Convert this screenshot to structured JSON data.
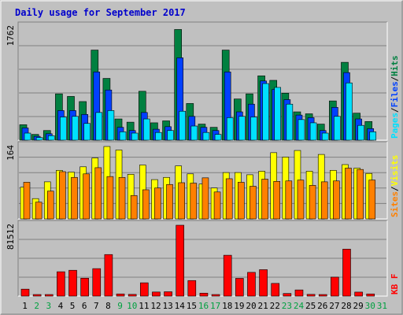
{
  "title": "Daily usage for September 2017",
  "colors": {
    "outer_bg": "#C0C0C0",
    "panel_bg": "#C0C0C0",
    "grid": "#808080",
    "title_text": "#0000CC",
    "hits": "#008040",
    "files": "#0040FF",
    "pages": "#00E0FF",
    "visits": "#FFFF00",
    "sites": "#FF8000",
    "kbytes": "#FF0000",
    "weekday_label": "#000000",
    "weekend_label": "#00A040"
  },
  "chart_data": [
    {
      "type": "bar",
      "title": "Daily usage for September 2017",
      "ylabel_max": "1762",
      "ylim": [
        0,
        1762
      ],
      "legend": [
        {
          "label": "Pages",
          "color": "#00E0FF"
        },
        {
          "label": "Files",
          "color": "#0040FF"
        },
        {
          "label": "Hits",
          "color": "#008040"
        }
      ],
      "categories": [
        "1",
        "2",
        "3",
        "4",
        "5",
        "6",
        "7",
        "8",
        "9",
        "10",
        "11",
        "12",
        "13",
        "14",
        "15",
        "16",
        "17",
        "18",
        "19",
        "20",
        "21",
        "22",
        "23",
        "24",
        "25",
        "26",
        "27",
        "28",
        "29",
        "30",
        "31"
      ],
      "series": [
        {
          "name": "Hits",
          "values": [
            240,
            90,
            150,
            720,
            680,
            600,
            1400,
            960,
            330,
            280,
            760,
            270,
            300,
            1720,
            570,
            250,
            200,
            1400,
            640,
            720,
            1000,
            930,
            730,
            440,
            410,
            250,
            610,
            1210,
            420,
            290,
            0
          ]
        },
        {
          "name": "Files",
          "values": [
            190,
            60,
            100,
            460,
            460,
            400,
            1060,
            780,
            200,
            150,
            430,
            170,
            210,
            1280,
            370,
            200,
            150,
            1060,
            440,
            560,
            920,
            790,
            630,
            390,
            350,
            150,
            510,
            1050,
            330,
            180,
            0
          ]
        },
        {
          "name": "Pages",
          "values": [
            110,
            40,
            70,
            360,
            370,
            260,
            430,
            460,
            130,
            110,
            330,
            120,
            150,
            450,
            220,
            120,
            90,
            350,
            370,
            360,
            880,
            820,
            560,
            320,
            270,
            110,
            370,
            890,
            230,
            130,
            0
          ]
        }
      ]
    },
    {
      "type": "bar",
      "ylabel_max": "164",
      "ylim": [
        0,
        164
      ],
      "legend": [
        {
          "label": "Sites",
          "color": "#FF8000"
        },
        {
          "label": "Visits",
          "color": "#FFFF00"
        }
      ],
      "categories": [
        "1",
        "2",
        "3",
        "4",
        "5",
        "6",
        "7",
        "8",
        "9",
        "10",
        "11",
        "12",
        "13",
        "14",
        "15",
        "16",
        "17",
        "18",
        "19",
        "20",
        "21",
        "22",
        "23",
        "24",
        "25",
        "26",
        "27",
        "28",
        "29",
        "30",
        "31"
      ],
      "series": [
        {
          "name": "Visits",
          "values": [
            72,
            46,
            84,
            110,
            106,
            118,
            138,
            164,
            156,
            101,
            122,
            89,
            94,
            120,
            102,
            79,
            70,
            105,
            105,
            100,
            108,
            150,
            140,
            155,
            108,
            146,
            110,
            123,
            115,
            103,
            0
          ]
        },
        {
          "name": "Sites",
          "values": [
            83,
            38,
            63,
            107,
            94,
            102,
            116,
            96,
            94,
            53,
            66,
            70,
            78,
            82,
            81,
            93,
            61,
            91,
            83,
            74,
            90,
            85,
            86,
            88,
            76,
            84,
            86,
            115,
            112,
            88,
            0
          ]
        }
      ]
    },
    {
      "type": "bar",
      "ylabel_max": "81512",
      "ylim": [
        0,
        81512
      ],
      "legend": [
        {
          "label": "KB F",
          "color": "#FF0000"
        }
      ],
      "categories": [
        "1",
        "2",
        "3",
        "4",
        "5",
        "6",
        "7",
        "8",
        "9",
        "10",
        "11",
        "12",
        "13",
        "14",
        "15",
        "16",
        "17",
        "18",
        "19",
        "20",
        "21",
        "22",
        "23",
        "24",
        "25",
        "26",
        "27",
        "28",
        "29",
        "30",
        "31"
      ],
      "series": [
        {
          "name": "KB F",
          "values": [
            8000,
            1100,
            1100,
            28000,
            29700,
            20600,
            31600,
            47800,
            2500,
            2000,
            15300,
            4700,
            5000,
            81512,
            17900,
            3400,
            1300,
            47000,
            20400,
            27300,
            30400,
            14600,
            3000,
            7100,
            2000,
            1100,
            21800,
            54000,
            4600,
            2500,
            0
          ]
        }
      ]
    }
  ],
  "x_axis": {
    "labels": [
      "1",
      "2",
      "3",
      "4",
      "5",
      "6",
      "7",
      "8",
      "9",
      "10",
      "11",
      "12",
      "13",
      "14",
      "15",
      "16",
      "17",
      "18",
      "19",
      "20",
      "21",
      "22",
      "23",
      "24",
      "25",
      "26",
      "27",
      "28",
      "29",
      "30",
      "31"
    ],
    "weekend_days": [
      "2",
      "3",
      "9",
      "10",
      "16",
      "17",
      "23",
      "24",
      "30",
      "31"
    ]
  }
}
